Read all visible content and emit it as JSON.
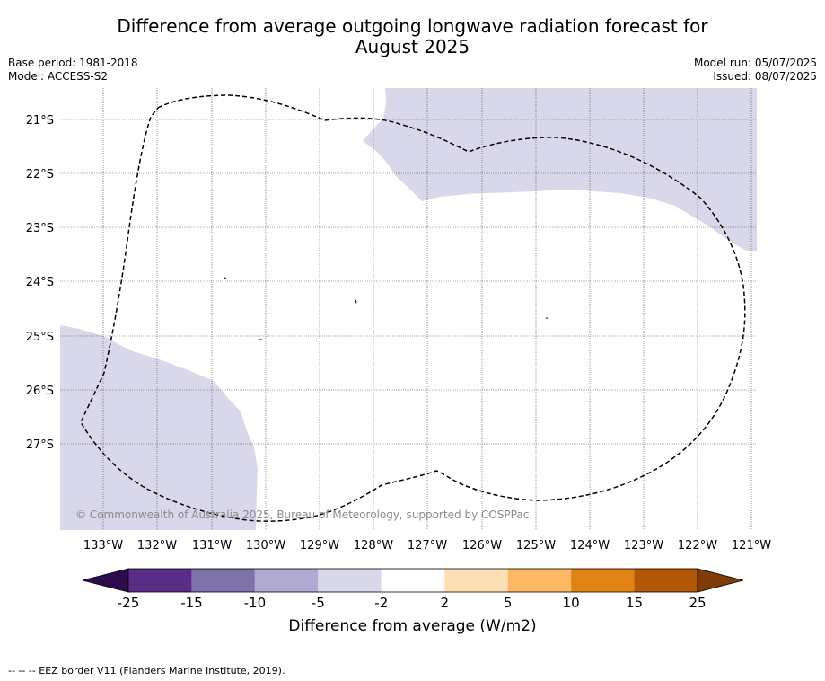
{
  "title_line1": "Difference from average outgoing longwave radiation forecast for",
  "title_line2": "August 2025",
  "base_period": "Base period: 1981-2018",
  "model": "Model: ACCESS-S2",
  "model_run": "Model run: 05/07/2025",
  "issued": "Issued: 08/07/2025",
  "copyright": "© Commonwealth of Australia 2025, Bureau of Meteorology, supported by COSPPac",
  "footnote": "--  --  -- EEZ border V11 (Flanders Marine Institute, 2019).",
  "map": {
    "lon_labels": [
      "133°W",
      "132°W",
      "131°W",
      "130°W",
      "129°W",
      "128°W",
      "127°W",
      "126°W",
      "125°W",
      "124°W",
      "123°W",
      "122°W",
      "121°W"
    ],
    "lat_labels": [
      "21°S",
      "22°S",
      "23°S",
      "24°S",
      "25°S",
      "26°S",
      "27°S"
    ],
    "region_fill_color": "#d8d8ea",
    "eez_border": "dashed"
  },
  "colorbar": {
    "label": "Difference from average (W/m2)",
    "ticks": [
      "-25",
      "-15",
      "-10",
      "-5",
      "-2",
      "2",
      "5",
      "10",
      "15",
      "25"
    ],
    "colors": [
      "#2d0b4e",
      "#582d86",
      "#7e72ab",
      "#b0aad2",
      "#d8d8ea",
      "#ffffff",
      "#fee0b6",
      "#fdb863",
      "#e08214",
      "#b35806",
      "#7f3b08"
    ]
  }
}
